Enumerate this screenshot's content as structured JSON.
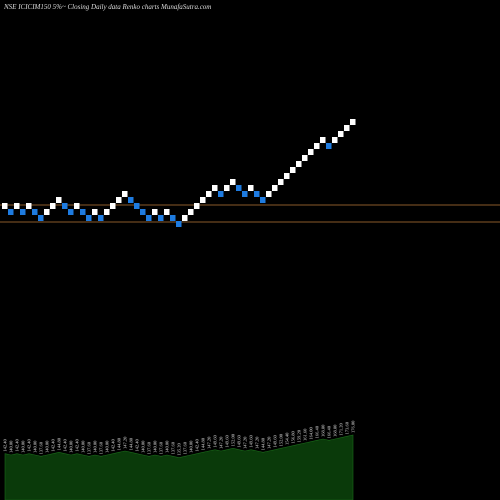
{
  "chart_data": {
    "type": "renko",
    "title": "NSE ICICIM150 5%~  Closing Daily data  Renko  charts MunafaSutra.com",
    "values": [
      142.4,
      140,
      142.4,
      140,
      142.4,
      140,
      137.6,
      140,
      142.4,
      144.8,
      142.4,
      140,
      142.4,
      140,
      137.6,
      140,
      137.6,
      140,
      142.4,
      144.8,
      147.2,
      144.8,
      142.4,
      140,
      137.6,
      140,
      137.6,
      140,
      137.6,
      135.2,
      137.6,
      140,
      142.4,
      144.8,
      147.2,
      149.6,
      147.2,
      149.6,
      152,
      149.6,
      147.2,
      149.6,
      147.2,
      144.8,
      147.2,
      149.6,
      152,
      154.4,
      156.8,
      159.2,
      161.6,
      164,
      166.4,
      168.8,
      166.4,
      168.8,
      171.2,
      173.6,
      176
    ],
    "value_labels": [
      "142.40",
      "140.00",
      "142.40",
      "140.00",
      "142.40",
      "140.00",
      "137.60",
      "140.00",
      "142.40",
      "144.80",
      "142.40",
      "140.00",
      "142.40",
      "140.00",
      "137.60",
      "140.00",
      "137.60",
      "140.00",
      "142.40",
      "144.80",
      "147.20",
      "144.80",
      "142.40",
      "140.00",
      "137.60",
      "140.00",
      "137.60",
      "140.00",
      "137.60",
      "135.20",
      "137.60",
      "140.00",
      "142.40",
      "144.80",
      "147.20",
      "149.60",
      "147.20",
      "149.60",
      "152.00",
      "149.60",
      "147.20",
      "149.60",
      "147.20",
      "144.80",
      "147.20",
      "149.60",
      "152.00",
      "154.40",
      "156.80",
      "159.20",
      "161.60",
      "164.00",
      "166.40",
      "168.80",
      "166.40",
      "168.80",
      "171.20",
      "173.60",
      "176.00"
    ],
    "up_color": "#ffffff",
    "down_color": "#1e7be0",
    "ylim": [
      24.8,
      224.8
    ],
    "y2lim": [
      59,
      239
    ],
    "area_color": "#0a3a0a",
    "hlines": [
      142.8,
      136
    ],
    "hline_color": "#8a5a2a"
  }
}
